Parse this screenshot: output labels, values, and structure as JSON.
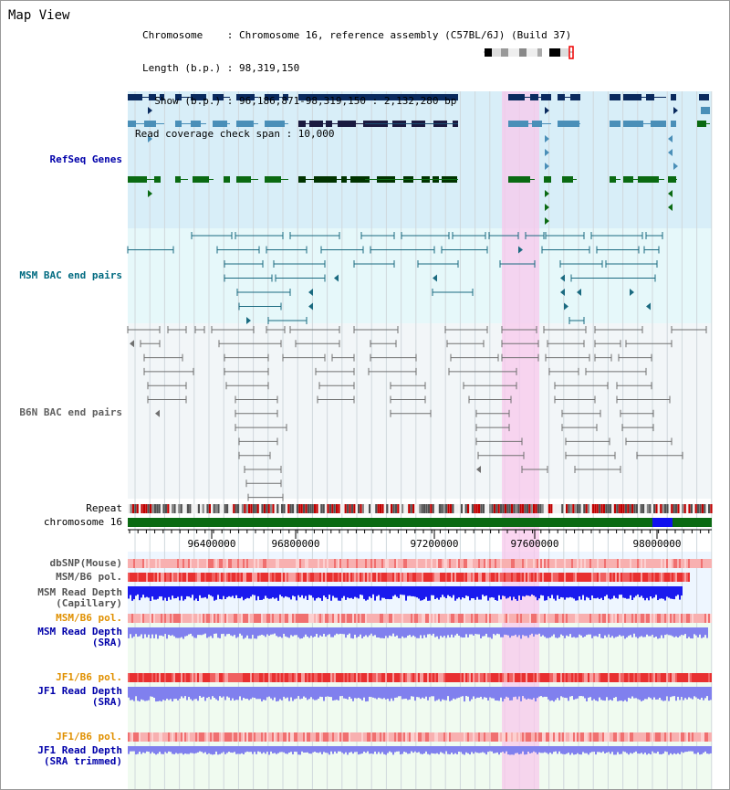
{
  "title": "Map View",
  "info": {
    "chromosome": "Chromosome    : Chromosome 16, reference assembly (C57BL/6J) (Build 37)",
    "length": "Length (b.p.) : 98,319,150",
    "show": "  Show (b.p.) : 96,186,871-98,319,150 : 2,132,280 bp",
    "span": "Read coverage check span : 10,000"
  },
  "tracks": {
    "refseq": "RefSeq Genes",
    "msm_bac": "MSM BAC end pairs",
    "b6n_bac": "B6N BAC end pairs",
    "repeat": "Repeat",
    "chromosome": "chromosome 16",
    "dbsnp": "dbSNP(Mouse)",
    "msm_pol": "MSM/B6 pol.",
    "msm_depth_cap_1": "MSM Read Depth",
    "msm_depth_cap_2": "(Capillary)",
    "msm_pol2": "MSM/B6 pol.",
    "msm_depth_sra_1": "MSM Read Depth",
    "msm_depth_sra_2": "(SRA)",
    "jf1_pol": "JF1/B6 pol.",
    "jf1_depth_1": "JF1 Read Depth",
    "jf1_depth_2": "(SRA)",
    "jf1_pol2": "JF1/B6 pol.",
    "jf1_trim_1": "JF1 Read Depth",
    "jf1_trim_2": "(SRA trimmed)"
  },
  "axis": {
    "ticks": [
      "96400000",
      "96800000",
      "97200000",
      "97600000",
      "98000000"
    ]
  },
  "colors": {
    "refseq_bg": "#d8eef8",
    "msm_bg": "#e6f8fa",
    "b6n_bg": "#f2f6f8",
    "highlight": "#f8d8f0",
    "navy": "#0a2a5e",
    "teal_light": "#4a8fb8",
    "green": "#0a6a12",
    "msm_line": "#1a6a80",
    "b6n_line": "#707070",
    "depth_blue": "#1a1aee",
    "depth_light": "#8080ee",
    "orange_label": "#e09000",
    "blue_label": "#0000aa"
  }
}
